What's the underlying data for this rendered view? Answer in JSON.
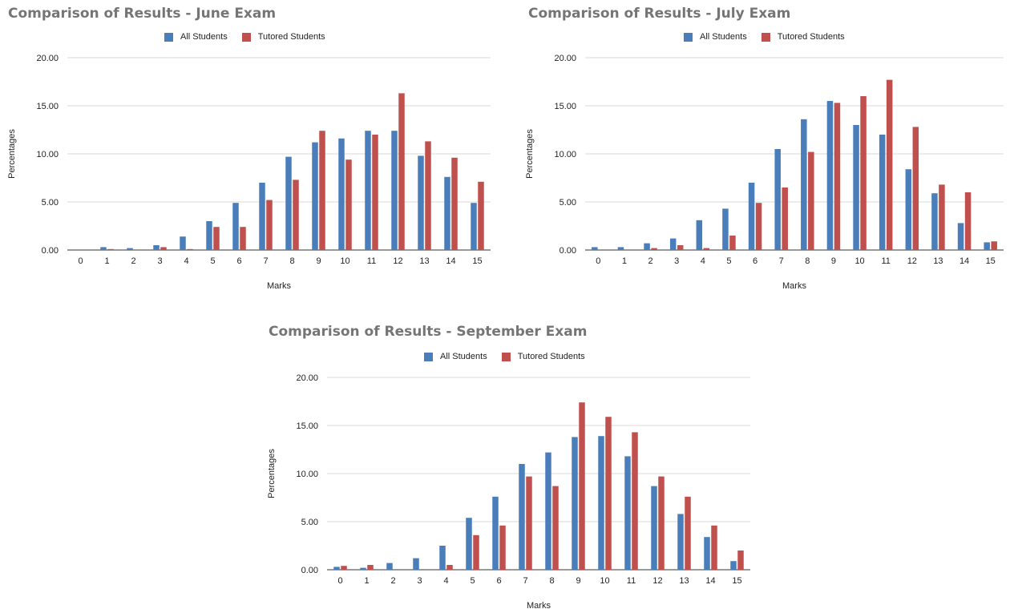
{
  "colors": {
    "all_students": "#4a7ebb",
    "tutored_students": "#c0504d",
    "grid": "#d9d9d9",
    "axis": "#333333",
    "title": "#757575"
  },
  "chart_data": [
    {
      "type": "bar",
      "title": "Comparison of Results - June Exam",
      "xlabel": "Marks",
      "ylabel": "Percentages",
      "ylim": [
        0,
        20
      ],
      "yticks": [
        "0.00",
        "5.00",
        "10.00",
        "15.00",
        "20.00"
      ],
      "grid": true,
      "legend": "top",
      "categories": [
        "0",
        "1",
        "2",
        "3",
        "4",
        "5",
        "6",
        "7",
        "8",
        "9",
        "10",
        "11",
        "12",
        "13",
        "14",
        "15"
      ],
      "series": [
        {
          "name": "All Students",
          "values": [
            0.0,
            0.3,
            0.2,
            0.5,
            1.4,
            3.0,
            4.9,
            7.0,
            9.7,
            11.2,
            11.6,
            12.4,
            12.4,
            9.8,
            7.6,
            4.9
          ]
        },
        {
          "name": "Tutored Students",
          "values": [
            0.0,
            0.1,
            0.0,
            0.3,
            0.1,
            2.4,
            2.4,
            5.2,
            7.3,
            12.4,
            9.4,
            12.0,
            16.3,
            11.3,
            9.6,
            7.1
          ]
        }
      ]
    },
    {
      "type": "bar",
      "title": "Comparison of Results  - July Exam",
      "xlabel": "Marks",
      "ylabel": "Percentages",
      "ylim": [
        0,
        20
      ],
      "yticks": [
        "0.00",
        "5.00",
        "10.00",
        "15.00",
        "20.00"
      ],
      "grid": true,
      "legend": "top",
      "categories": [
        "0",
        "1",
        "2",
        "3",
        "4",
        "5",
        "6",
        "7",
        "8",
        "9",
        "10",
        "11",
        "12",
        "13",
        "14",
        "15"
      ],
      "series": [
        {
          "name": "All Students",
          "values": [
            0.3,
            0.3,
            0.7,
            1.2,
            3.1,
            4.3,
            7.0,
            10.5,
            13.6,
            15.5,
            13.0,
            12.0,
            8.4,
            5.9,
            2.8,
            0.8
          ]
        },
        {
          "name": "Tutored Students",
          "values": [
            0.0,
            0.0,
            0.2,
            0.5,
            0.2,
            1.5,
            4.9,
            6.5,
            10.2,
            15.3,
            16.0,
            17.7,
            12.8,
            6.8,
            6.0,
            0.9
          ]
        }
      ]
    },
    {
      "type": "bar",
      "title": "Comparison of Results - September Exam",
      "xlabel": "Marks",
      "ylabel": "Percentages",
      "ylim": [
        0,
        20
      ],
      "yticks": [
        "0.00",
        "5.00",
        "10.00",
        "15.00",
        "20.00"
      ],
      "grid": true,
      "legend": "top",
      "categories": [
        "0",
        "1",
        "2",
        "3",
        "4",
        "5",
        "6",
        "7",
        "8",
        "9",
        "10",
        "11",
        "12",
        "13",
        "14",
        "15"
      ],
      "series": [
        {
          "name": "All Students",
          "values": [
            0.3,
            0.2,
            0.7,
            1.2,
            2.5,
            5.4,
            7.6,
            11.0,
            12.2,
            13.8,
            13.9,
            11.8,
            8.7,
            5.8,
            3.4,
            0.9
          ]
        },
        {
          "name": "Tutored Students",
          "values": [
            0.4,
            0.5,
            0.0,
            0.0,
            0.5,
            3.6,
            4.6,
            9.7,
            8.7,
            17.4,
            15.9,
            14.3,
            9.7,
            7.6,
            4.6,
            2.0
          ]
        }
      ]
    }
  ]
}
